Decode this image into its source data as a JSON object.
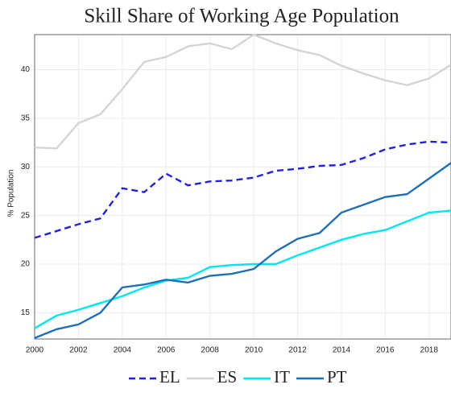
{
  "chart_data": {
    "type": "line",
    "title": "Skill Share of Working Age Population",
    "y_label": "% Population",
    "x": [
      2000,
      2001,
      2002,
      2003,
      2004,
      2005,
      2006,
      2007,
      2008,
      2009,
      2010,
      2011,
      2012,
      2013,
      2014,
      2015,
      2016,
      2017,
      2018,
      2019
    ],
    "series": [
      {
        "name": "EL",
        "color": "#2222dd",
        "style": "dashed",
        "values": [
          22.7,
          23.4,
          24.1,
          24.7,
          27.8,
          27.4,
          29.3,
          28.1,
          28.5,
          28.6,
          28.9,
          29.6,
          29.8,
          30.1,
          30.2,
          30.9,
          31.8,
          32.3,
          32.6,
          32.5
        ]
      },
      {
        "name": "ES",
        "color": "#d4d4d4",
        "style": "solid",
        "values": [
          32.0,
          31.9,
          34.5,
          35.4,
          38.0,
          40.8,
          41.3,
          42.4,
          42.7,
          42.1,
          43.6,
          42.7,
          42.0,
          41.5,
          40.4,
          39.6,
          38.9,
          38.4,
          39.1,
          40.5
        ]
      },
      {
        "name": "IT",
        "color": "#00e5f0",
        "style": "solid",
        "values": [
          13.4,
          14.7,
          15.3,
          16.0,
          16.7,
          17.6,
          18.3,
          18.6,
          19.7,
          19.9,
          20.0,
          20.0,
          20.9,
          21.7,
          22.5,
          23.1,
          23.5,
          24.4,
          25.3,
          25.5
        ]
      },
      {
        "name": "PT",
        "color": "#1f6fb8",
        "style": "solid",
        "values": [
          12.4,
          13.3,
          13.8,
          15.0,
          17.6,
          17.9,
          18.4,
          18.1,
          18.8,
          19.0,
          19.5,
          21.3,
          22.6,
          23.2,
          25.3,
          26.1,
          26.9,
          27.2,
          28.8,
          30.4
        ]
      }
    ],
    "xlim": [
      2000,
      2019
    ],
    "xticks": [
      2000,
      2002,
      2004,
      2006,
      2008,
      2010,
      2012,
      2014,
      2016,
      2018
    ],
    "ylim": [
      12.3,
      43.6
    ],
    "yticks": [
      15,
      20,
      25,
      30,
      35,
      40
    ],
    "grid": true,
    "legend": "bottom"
  }
}
